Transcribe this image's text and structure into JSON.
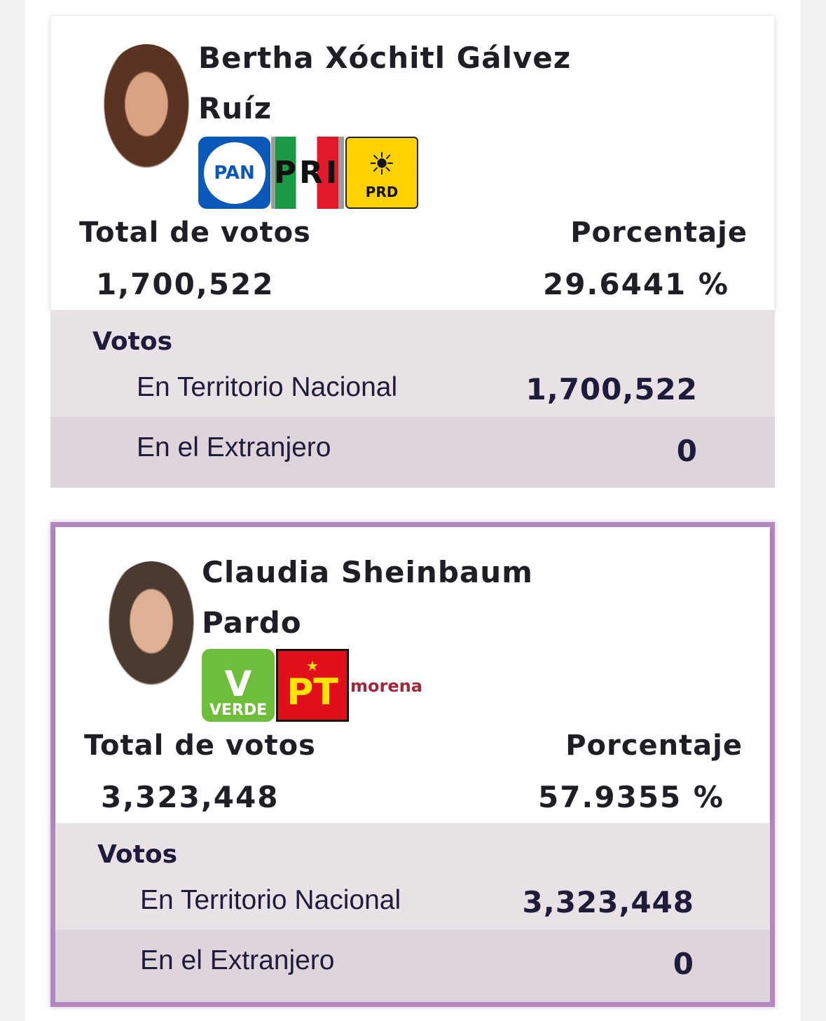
{
  "candidates": [
    {
      "name_line1": "Bertha Xóchitl Gálvez",
      "name_line2": "Ruíz",
      "parties": [
        "PAN",
        "PRI",
        "PRD"
      ],
      "total_label": "Total de votos",
      "total": "1,700,522",
      "pct_label": "Porcentaje",
      "pct": "29.6441 %",
      "votos_label": "Votos",
      "nacional_label": "En Territorio Nacional",
      "nacional": "1,700,522",
      "extranjero_label": "En el Extranjero",
      "extranjero": "0",
      "highlighted": false
    },
    {
      "name_line1": "Claudia Sheinbaum",
      "name_line2": "Pardo",
      "parties": [
        "VERDE",
        "PT",
        "morena"
      ],
      "total_label": "Total de votos",
      "total": "3,323,448",
      "pct_label": "Porcentaje",
      "pct": "57.9355 %",
      "votos_label": "Votos",
      "nacional_label": "En Territorio Nacional",
      "nacional": "3,323,448",
      "extranjero_label": "En el Extranjero",
      "extranjero": "0",
      "highlighted": true
    }
  ],
  "colors": {
    "highlight_border": "#b388c0",
    "row1": "#e8e2e7",
    "row2": "#ded4dc",
    "pan": "#0a58b8",
    "pri_green": "#1a9a45",
    "pri_red": "#e3192c",
    "prd": "#ffd200",
    "verde": "#6fbe3b",
    "pt": "#e10f1a",
    "morena": "#a0283a"
  }
}
